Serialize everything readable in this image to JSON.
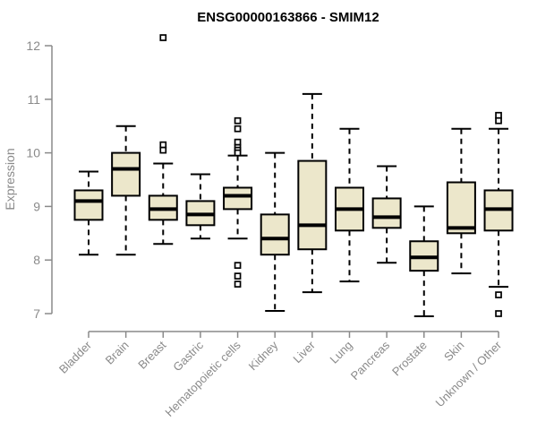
{
  "chart_data": {
    "type": "boxplot",
    "title": "ENSG00000163866 - SMIM12",
    "ylabel": "Expression",
    "xlabel": "",
    "ylim": [
      7,
      12
    ],
    "yticks": [
      7,
      8,
      9,
      10,
      11,
      12
    ],
    "grid": false,
    "legend": "none",
    "categories": [
      "Bladder",
      "Brain",
      "Breast",
      "Gastric",
      "Hematopoietic cells",
      "Kidney",
      "Liver",
      "Lung",
      "Pancreas",
      "Prostate",
      "Skin",
      "Unknown / Other"
    ],
    "series": [
      {
        "label": "Bladder",
        "whislo": 8.1,
        "q1": 8.75,
        "med": 9.1,
        "q3": 9.3,
        "whishi": 9.65,
        "outliers": []
      },
      {
        "label": "Brain",
        "whislo": 8.1,
        "q1": 9.2,
        "med": 9.7,
        "q3": 10.0,
        "whishi": 10.5,
        "outliers": []
      },
      {
        "label": "Breast",
        "whislo": 8.3,
        "q1": 8.75,
        "med": 8.95,
        "q3": 9.2,
        "whishi": 9.8,
        "outliers": [
          12.15,
          10.15,
          10.05
        ]
      },
      {
        "label": "Gastric",
        "whislo": 8.4,
        "q1": 8.65,
        "med": 8.85,
        "q3": 9.1,
        "whishi": 9.6,
        "outliers": []
      },
      {
        "label": "Hematopoietic cells",
        "whislo": 8.4,
        "q1": 8.95,
        "med": 9.2,
        "q3": 9.35,
        "whishi": 9.95,
        "outliers": [
          10.6,
          10.45,
          10.2,
          10.1,
          10.05,
          10.0,
          7.9,
          7.7,
          7.55
        ]
      },
      {
        "label": "Kidney",
        "whislo": 7.05,
        "q1": 8.1,
        "med": 8.4,
        "q3": 8.85,
        "whishi": 10.0,
        "outliers": []
      },
      {
        "label": "Liver",
        "whislo": 7.4,
        "q1": 8.2,
        "med": 8.65,
        "q3": 9.85,
        "whishi": 11.1,
        "outliers": []
      },
      {
        "label": "Lung",
        "whislo": 7.6,
        "q1": 8.55,
        "med": 8.95,
        "q3": 9.35,
        "whishi": 10.45,
        "outliers": []
      },
      {
        "label": "Pancreas",
        "whislo": 7.95,
        "q1": 8.6,
        "med": 8.8,
        "q3": 9.15,
        "whishi": 9.75,
        "outliers": []
      },
      {
        "label": "Prostate",
        "whislo": 6.95,
        "q1": 7.8,
        "med": 8.05,
        "q3": 8.35,
        "whishi": 9.0,
        "outliers": []
      },
      {
        "label": "Skin",
        "whislo": 7.75,
        "q1": 8.5,
        "med": 8.6,
        "q3": 9.45,
        "whishi": 10.45,
        "outliers": []
      },
      {
        "label": "Unknown / Other",
        "whislo": 7.5,
        "q1": 8.55,
        "med": 8.95,
        "q3": 9.3,
        "whishi": 10.45,
        "outliers": [
          10.7,
          10.6,
          7.35,
          7.0
        ]
      }
    ],
    "colors": {
      "box_fill": "#ECE7CB",
      "box_border": "#000000",
      "median": "#000000",
      "whisker": "#000000",
      "outlier_border": "#000000",
      "outlier_fill": "#ffffff",
      "axis": "#8A8A8A",
      "tick_label": "#8A8A8A",
      "title": "#000000"
    }
  }
}
